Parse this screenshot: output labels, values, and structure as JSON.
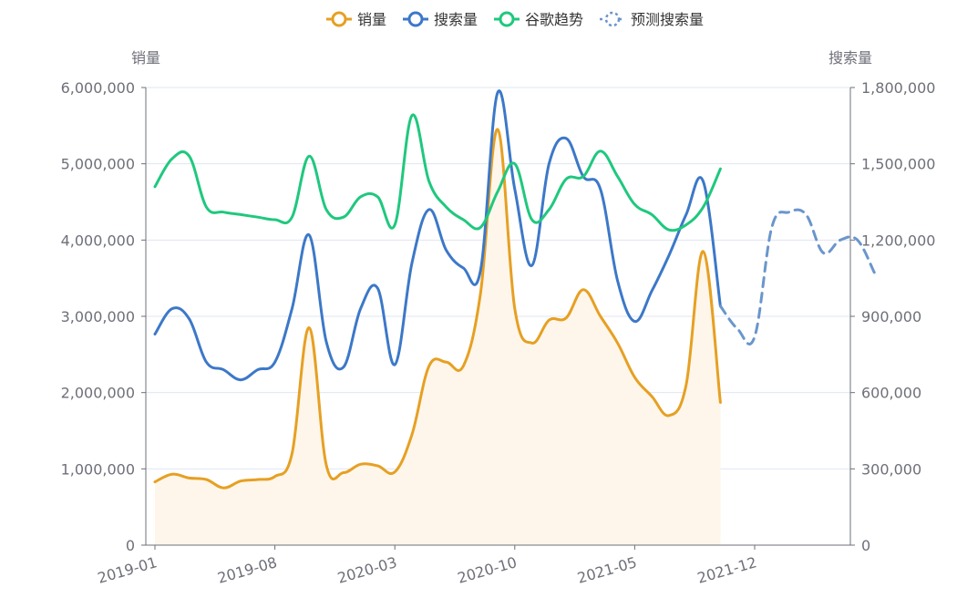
{
  "chart_data": {
    "type": "line",
    "legend": {
      "placement": "top-center",
      "items": [
        {
          "label": "销量",
          "color": "#E6A023",
          "style": "solid"
        },
        {
          "label": "搜索量",
          "color": "#3C78C8",
          "style": "solid"
        },
        {
          "label": "谷歌趋势",
          "color": "#1FC87E",
          "style": "solid"
        },
        {
          "label": "预测搜索量",
          "color": "#6A96CC",
          "style": "dotted"
        }
      ]
    },
    "y_left": {
      "name": "销量",
      "min": 0,
      "max": 6000000,
      "ticks": [
        "0",
        "1,000,000",
        "2,000,000",
        "3,000,000",
        "4,000,000",
        "5,000,000",
        "6,000,000"
      ]
    },
    "y_right": {
      "name": "搜索量",
      "min": 0,
      "max": 1800000,
      "ticks": [
        "0",
        "300,000",
        "600,000",
        "900,000",
        "1,200,000",
        "1,500,000",
        "1,800,000"
      ]
    },
    "x": {
      "categories": [
        "2019-01",
        "2019-02",
        "2019-03",
        "2019-04",
        "2019-05",
        "2019-06",
        "2019-07",
        "2019-08",
        "2019-09",
        "2019-10",
        "2019-11",
        "2019-12",
        "2020-01",
        "2020-02",
        "2020-03",
        "2020-04",
        "2020-05",
        "2020-06",
        "2020-07",
        "2020-08",
        "2020-09",
        "2020-10",
        "2020-11",
        "2020-12",
        "2021-01",
        "2021-02",
        "2021-03",
        "2021-04",
        "2021-05",
        "2021-06",
        "2021-07",
        "2021-08",
        "2021-09",
        "2021-10",
        "2021-11",
        "2021-12",
        "2022-01",
        "2022-02",
        "2022-03",
        "2022-04",
        "2022-05",
        "2022-06"
      ],
      "tick_labels": [
        {
          "index": 0,
          "label": "2019-01"
        },
        {
          "index": 7,
          "label": "2019-08"
        },
        {
          "index": 14,
          "label": "2020-03"
        },
        {
          "index": 21,
          "label": "2020-10"
        },
        {
          "index": 28,
          "label": "2021-05"
        },
        {
          "index": 35,
          "label": "2021-12"
        }
      ],
      "label_rotation": "slanted"
    },
    "grid": true,
    "series": [
      {
        "name": "销量",
        "axis": "left",
        "color": "#E6A023",
        "area": true,
        "area_color": "#FEF6EA",
        "values": [
          830000,
          930000,
          880000,
          860000,
          750000,
          840000,
          860000,
          900000,
          1200000,
          2850000,
          1050000,
          950000,
          1060000,
          1040000,
          960000,
          1450000,
          2350000,
          2400000,
          2350000,
          3300000,
          5450000,
          3100000,
          2650000,
          2950000,
          2980000,
          3350000,
          3000000,
          2650000,
          2200000,
          1950000,
          1700000,
          2100000,
          3850000,
          1870000
        ]
      },
      {
        "name": "搜索量",
        "axis": "right",
        "color": "#3C78C8",
        "values": [
          830000,
          930000,
          890000,
          720000,
          690000,
          650000,
          690000,
          720000,
          930000,
          1220000,
          800000,
          700000,
          930000,
          1010000,
          710000,
          1110000,
          1320000,
          1160000,
          1090000,
          1080000,
          1780000,
          1400000,
          1100000,
          1500000,
          1600000,
          1450000,
          1400000,
          1040000,
          880000,
          1000000,
          1140000,
          1300000,
          1430000,
          940000
        ]
      },
      {
        "name": "谷歌趋势",
        "axis": "right",
        "color": "#1FC87E",
        "values": [
          1410000,
          1520000,
          1530000,
          1330000,
          1310000,
          1300000,
          1290000,
          1280000,
          1290000,
          1530000,
          1320000,
          1290000,
          1370000,
          1370000,
          1260000,
          1690000,
          1430000,
          1330000,
          1280000,
          1250000,
          1390000,
          1500000,
          1280000,
          1320000,
          1440000,
          1450000,
          1550000,
          1450000,
          1340000,
          1300000,
          1240000,
          1260000,
          1330000,
          1480000
        ]
      },
      {
        "name": "预测搜索量",
        "axis": "right",
        "color": "#6A96CC",
        "dashed": true,
        "start_index": 33,
        "values": [
          940000,
          850000,
          820000,
          1250000,
          1310000,
          1300000,
          1150000,
          1200000,
          1200000,
          1070000
        ]
      }
    ]
  }
}
